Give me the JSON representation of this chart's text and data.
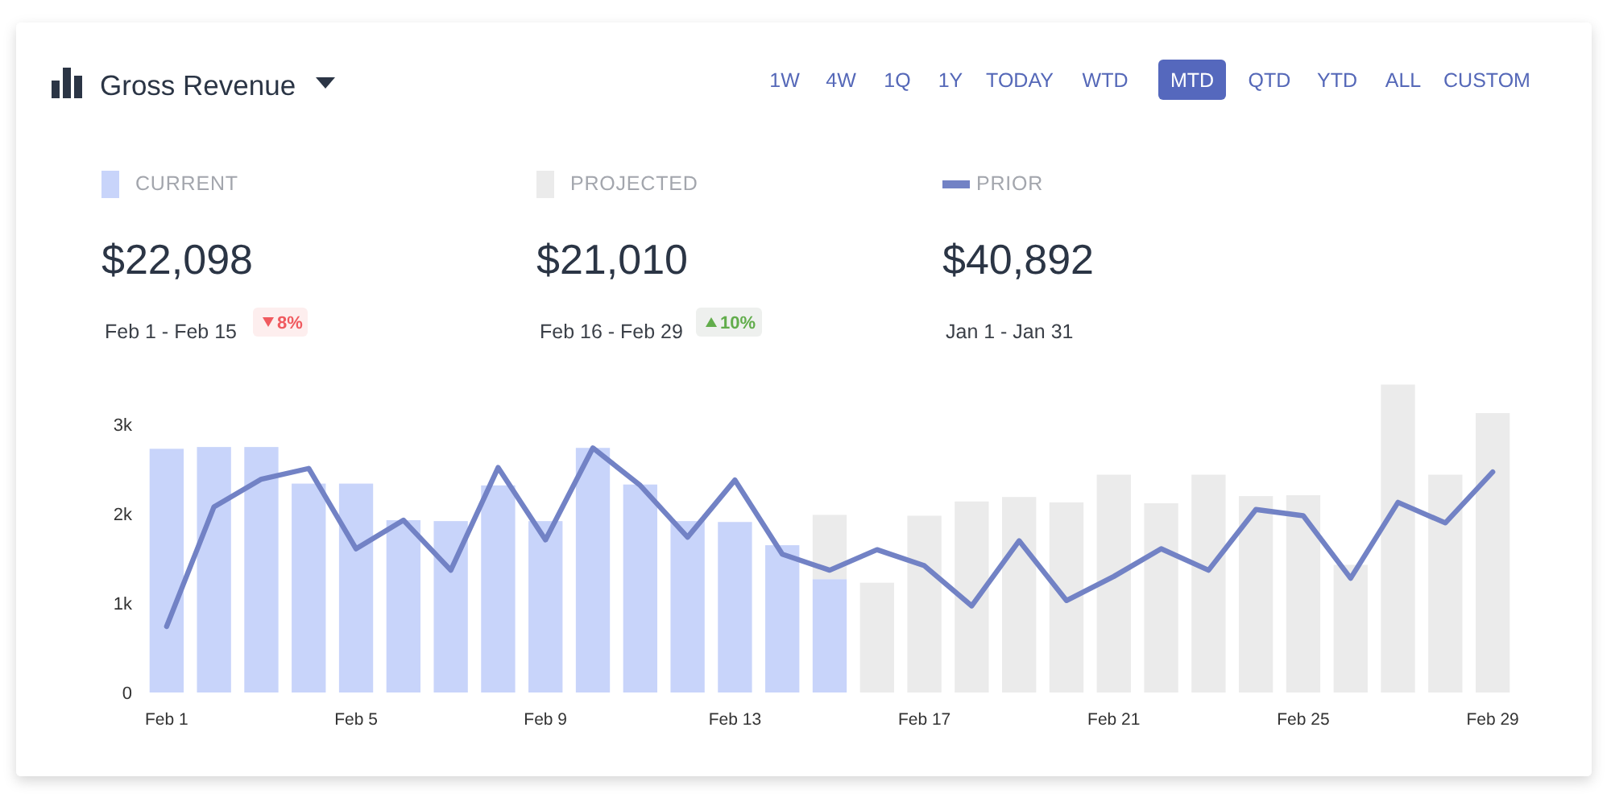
{
  "chart_data": {
    "type": "bar",
    "title": "Gross Revenue",
    "stacked": true,
    "legend": "top",
    "categories": [
      "Feb 1",
      null,
      null,
      null,
      "Feb 5",
      null,
      null,
      null,
      "Feb 9",
      null,
      null,
      null,
      "Feb 13",
      null,
      null,
      null,
      "Feb 17",
      null,
      null,
      null,
      "Feb 21",
      null,
      null,
      null,
      "Feb 25",
      null,
      null,
      null,
      "Feb 29"
    ],
    "ylim": [
      0,
      3500
    ],
    "yticks": [
      0,
      {
        "value": 1000,
        "label": "1k"
      },
      {
        "value": 2000,
        "label": "2k"
      },
      {
        "value": 3000,
        "label": "3k"
      }
    ],
    "series": [
      {
        "name": "CURRENT",
        "color": "#c8d4fa",
        "values": [
          2730,
          2750,
          2750,
          2340,
          2340,
          1930,
          1920,
          2320,
          1920,
          2740,
          2330,
          1920,
          1910,
          1650,
          1270,
          null,
          null,
          null,
          null,
          null,
          null,
          null,
          null,
          null,
          null,
          null,
          null,
          null,
          null
        ]
      },
      {
        "name": "PROJECTED",
        "color": "#ebebeb",
        "values": [
          null,
          null,
          null,
          null,
          null,
          null,
          null,
          null,
          null,
          null,
          null,
          null,
          null,
          null,
          720,
          1230,
          1980,
          2140,
          2190,
          2130,
          2440,
          2120,
          2440,
          2200,
          2210,
          1430,
          3450,
          2440,
          3130
        ]
      },
      {
        "name": "PRIOR",
        "type": "line",
        "color": "#7282c5",
        "values": [
          740,
          2080,
          2390,
          2510,
          1610,
          1930,
          1370,
          2520,
          1710,
          2740,
          2320,
          1740,
          2380,
          1550,
          1370,
          1600,
          1420,
          970,
          1700,
          1030,
          1300,
          1610,
          1370,
          2050,
          1980,
          1280,
          2130,
          1900,
          2470
        ]
      }
    ],
    "annotations": [
      "$22,098",
      "Feb 1 - Feb 15",
      "8%",
      "$21,010",
      "Feb 16 - Feb 29",
      "10%",
      "$40,892",
      "Jan 1 - Jan 31",
      "1W",
      "4W",
      "1Q",
      "1Y",
      "TODAY",
      "WTD",
      "MTD",
      "QTD",
      "YTD",
      "ALL",
      "CUSTOM"
    ]
  }
}
